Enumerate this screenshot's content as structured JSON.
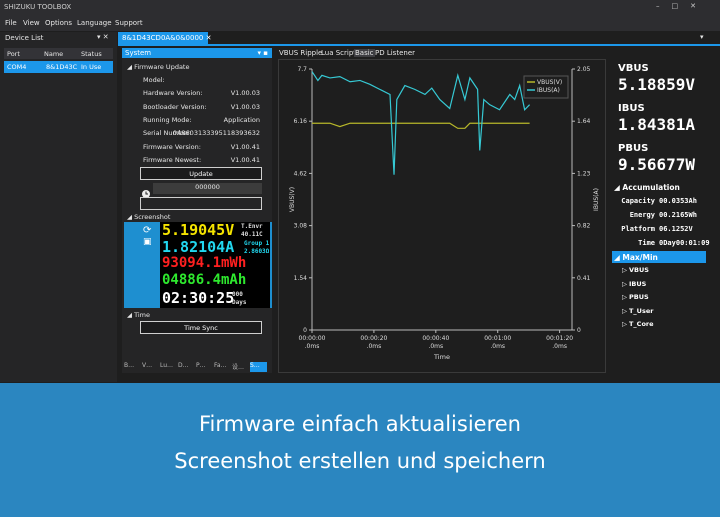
{
  "window": {
    "title": "SHIZUKU TOOLBOX",
    "menu": [
      "File",
      "View",
      "Options",
      "Language",
      "Support"
    ]
  },
  "device_list": {
    "title": "Device List",
    "columns": [
      "Port",
      "Name",
      "Status"
    ],
    "rows": [
      [
        "COM4",
        "8&1D43C",
        "In Use"
      ]
    ]
  },
  "document_tab": "8&1D43CD0A&0&0000",
  "system_panel": {
    "title": "System",
    "firmware_update": {
      "title": "Firmware Update",
      "fields": [
        {
          "label": "Model:"
        },
        {
          "label": "Hardware Version:",
          "value": "V1.00.03"
        },
        {
          "label": "Bootloader Version:",
          "value": "V1.00.03"
        },
        {
          "label": "Running Mode:",
          "value": "Application"
        },
        {
          "label": "Serial Number:",
          "value": "0A8603133395118393632"
        },
        {
          "label": "Firmware Version:",
          "value": "V1.00.41"
        },
        {
          "label": "Firmware Newest:",
          "value": "V1.00.41"
        }
      ],
      "button": "Update",
      "progress": "000000"
    },
    "screenshot": {
      "title": "Screenshot",
      "lcd": {
        "voltage": "5.19045V",
        "current": "1.82104A",
        "energy": "93094.1mWh",
        "charge": "04886.4mAh",
        "time": "02:30:25",
        "temp_label": "T.Envr",
        "temp": "40.11C",
        "group": "Group 1",
        "resistance": "2.8603Ω",
        "days": "000",
        "days_label": "Days"
      }
    },
    "time": {
      "title": "Time",
      "button": "Time Sync"
    },
    "tabs": [
      "B…",
      "V…",
      "Lu…",
      "D…",
      "P…",
      "Fa…",
      "设…",
      "S…"
    ]
  },
  "chart_tabs": [
    "VBUS Ripple",
    "Lua Script",
    "Basic",
    "PD Listener"
  ],
  "chart_data": {
    "type": "line",
    "xlabel": "Time",
    "ylabel": "VBUS(V)",
    "y2label": "IBUS(A)",
    "x": [
      0,
      1.9,
      3.2,
      5.8,
      9.0,
      12.3,
      15.5,
      18.7,
      21.9,
      25.2,
      26.5,
      27.4,
      30.0,
      33.2,
      36.5,
      38.7,
      41.3,
      44.5,
      47.1,
      49.4,
      51.0,
      53.5,
      54.2,
      55.5,
      57.4,
      60.6,
      63.9,
      65.5,
      67.1,
      68.7,
      70.3
    ],
    "series": [
      {
        "name": "VBUS(V)",
        "color": "#b8b82a",
        "values": [
          6.1,
          6.1,
          6.1,
          6.1,
          6.0,
          6.1,
          6.1,
          6.1,
          6.1,
          6.1,
          6.1,
          6.1,
          6.1,
          6.1,
          6.1,
          6.1,
          6.1,
          6.1,
          5.95,
          5.95,
          6.1,
          6.1,
          6.1,
          6.1,
          6.1,
          6.1,
          6.1,
          6.1,
          6.1,
          6.1,
          6.1
        ]
      },
      {
        "name": "IBUS(A)",
        "color": "#36c9d4",
        "axis": "y2",
        "values": [
          2.03,
          1.96,
          2.0,
          1.98,
          1.99,
          1.95,
          1.96,
          1.93,
          1.89,
          1.85,
          1.22,
          1.81,
          1.92,
          1.89,
          1.85,
          1.9,
          1.81,
          1.74,
          2.0,
          1.81,
          1.98,
          1.89,
          1.41,
          1.81,
          1.77,
          1.73,
          1.85,
          1.81,
          1.92,
          1.73,
          1.77
        ]
      }
    ],
    "xlim": [
      0,
      84
    ],
    "xticks": [
      {
        "value": 0,
        "label": "00:00:00\n.0ms"
      },
      {
        "value": 20,
        "label": "00:00:20\n.0ms"
      },
      {
        "value": 40,
        "label": "00:00:40\n.0ms"
      },
      {
        "value": 60,
        "label": "00:01:00\n.0ms"
      },
      {
        "value": 80,
        "label": "00:01:20\n.0ms"
      }
    ],
    "ylim": [
      0,
      7.7
    ],
    "yticks": [
      0,
      1.54,
      3.08,
      4.62,
      6.16,
      7.7
    ],
    "y2lim": [
      0,
      2.05
    ],
    "y2ticks": [
      0,
      0.41,
      0.82,
      1.23,
      1.64,
      2.05
    ],
    "grid": false,
    "legend": "upper right"
  },
  "readings": [
    {
      "label": "VBUS",
      "value": "5.18859V"
    },
    {
      "label": "IBUS",
      "value": "1.84381A"
    },
    {
      "label": "PBUS",
      "value": "9.56677W"
    }
  ],
  "accumulation": {
    "title": "Accumulation",
    "rows": [
      {
        "label": "Capacity",
        "value": "00.0353Ah"
      },
      {
        "label": "Energy",
        "value": "00.2165Wh"
      },
      {
        "label": "Platform",
        "value": "06.1252V"
      },
      {
        "label": "Time",
        "value": "0Day00:01:09"
      }
    ]
  },
  "max_min": {
    "title": "Max/Min",
    "items": [
      "VBUS",
      "IBUS",
      "PBUS",
      "T_User",
      "T_Core"
    ]
  },
  "banner": {
    "lines": [
      "Firmware einfach aktualisieren",
      "Screenshot erstellen und speichern"
    ]
  }
}
